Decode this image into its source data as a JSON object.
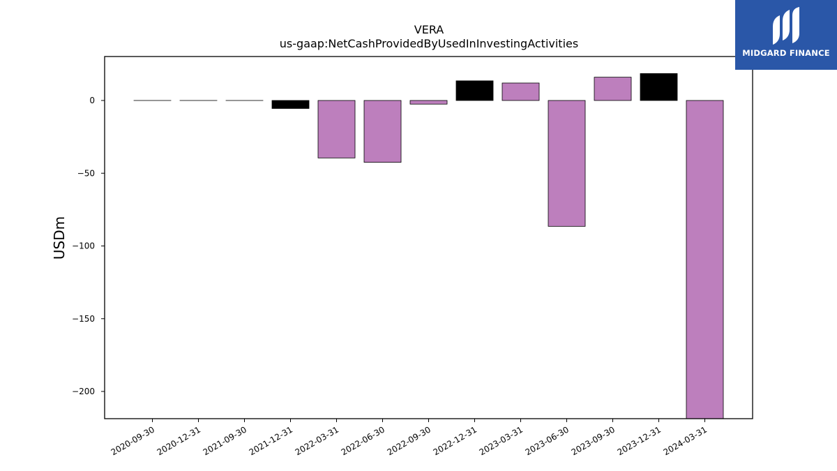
{
  "chart_data": {
    "type": "bar",
    "title": "VERA",
    "subtitle": "us-gaap:NetCashProvidedByUsedInInvestingActivities",
    "xlabel": "",
    "ylabel": "USDm",
    "categories": [
      "2020-09-30",
      "2020-12-31",
      "2021-09-30",
      "2021-12-31",
      "2022-03-31",
      "2022-06-30",
      "2022-09-30",
      "2022-12-31",
      "2023-03-31",
      "2023-06-30",
      "2023-09-30",
      "2023-12-31",
      "2024-03-31"
    ],
    "values": [
      0,
      0,
      0,
      -5.5,
      -39.5,
      -42.5,
      -2.5,
      13.5,
      12,
      -86.5,
      16,
      18.5,
      -219
    ],
    "bar_colors": [
      "#000000",
      "#000000",
      "#000000",
      "#000000",
      "#bd7fbd",
      "#bd7fbd",
      "#bd7fbd",
      "#000000",
      "#bd7fbd",
      "#bd7fbd",
      "#bd7fbd",
      "#000000",
      "#bd7fbd"
    ],
    "yticks": [
      0,
      -50,
      -100,
      -150,
      -200
    ],
    "ylim": [
      -219,
      30
    ],
    "grid": false,
    "legend": "none"
  },
  "logo": {
    "text": "MIDGARD FINANCE",
    "background": "#2a57a8"
  }
}
